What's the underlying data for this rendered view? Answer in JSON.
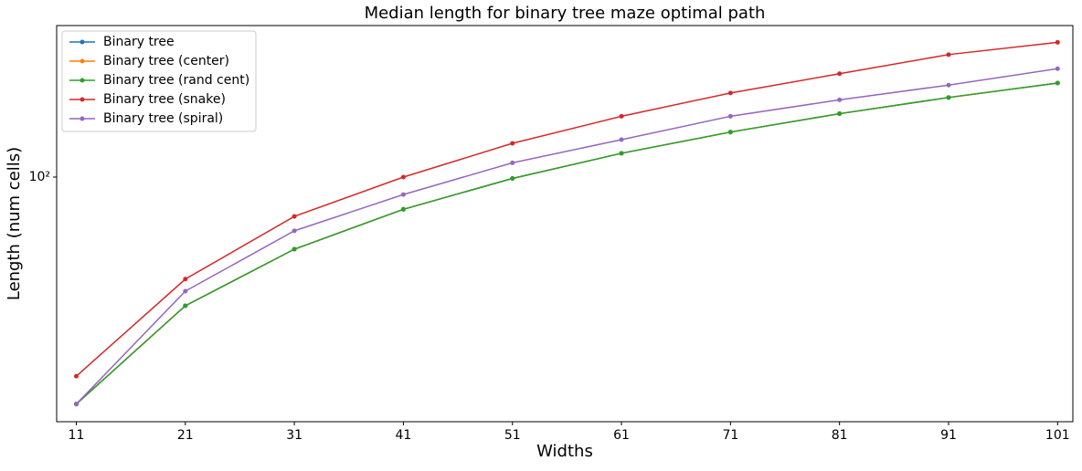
{
  "chart_data": {
    "type": "line",
    "title": "Median length for binary tree maze optimal path",
    "x_label": "Widths",
    "y_label": "Length (num cells)",
    "x": [
      11,
      21,
      31,
      41,
      51,
      61,
      71,
      81,
      91,
      101
    ],
    "series": [
      {
        "name": "Binary tree",
        "color": "#1f77b4",
        "values": [
          19,
          39,
          59,
          79,
          99,
          119,
          139,
          159,
          179,
          199
        ]
      },
      {
        "name": "Binary tree (center)",
        "color": "#ff7f0e",
        "values": [
          19,
          39,
          59,
          79,
          99,
          119,
          139,
          159,
          179,
          199
        ]
      },
      {
        "name": "Binary tree (rand cent)",
        "color": "#2ca02c",
        "values": [
          19,
          39,
          59,
          79,
          99,
          119,
          139,
          159,
          179,
          199
        ]
      },
      {
        "name": "Binary tree (snake)",
        "color": "#d62728",
        "values": [
          23.3,
          47.4,
          75,
          100,
          128,
          156,
          185,
          213,
          245,
          268
        ]
      },
      {
        "name": "Binary tree (spiral)",
        "color": "#9467bd",
        "values": [
          19,
          43.4,
          67.5,
          88,
          111,
          131.5,
          156,
          176,
          196,
          221
        ]
      }
    ],
    "xlim": [
      9.2,
      102.4
    ],
    "xticks": [
      11,
      21,
      31,
      41,
      51,
      61,
      71,
      81,
      91,
      101
    ],
    "ylim": [
      16.7,
      303
    ],
    "yticks": [
      {
        "value": 100,
        "label": "10²"
      }
    ],
    "y_scale": "log",
    "legend": "upper left"
  }
}
